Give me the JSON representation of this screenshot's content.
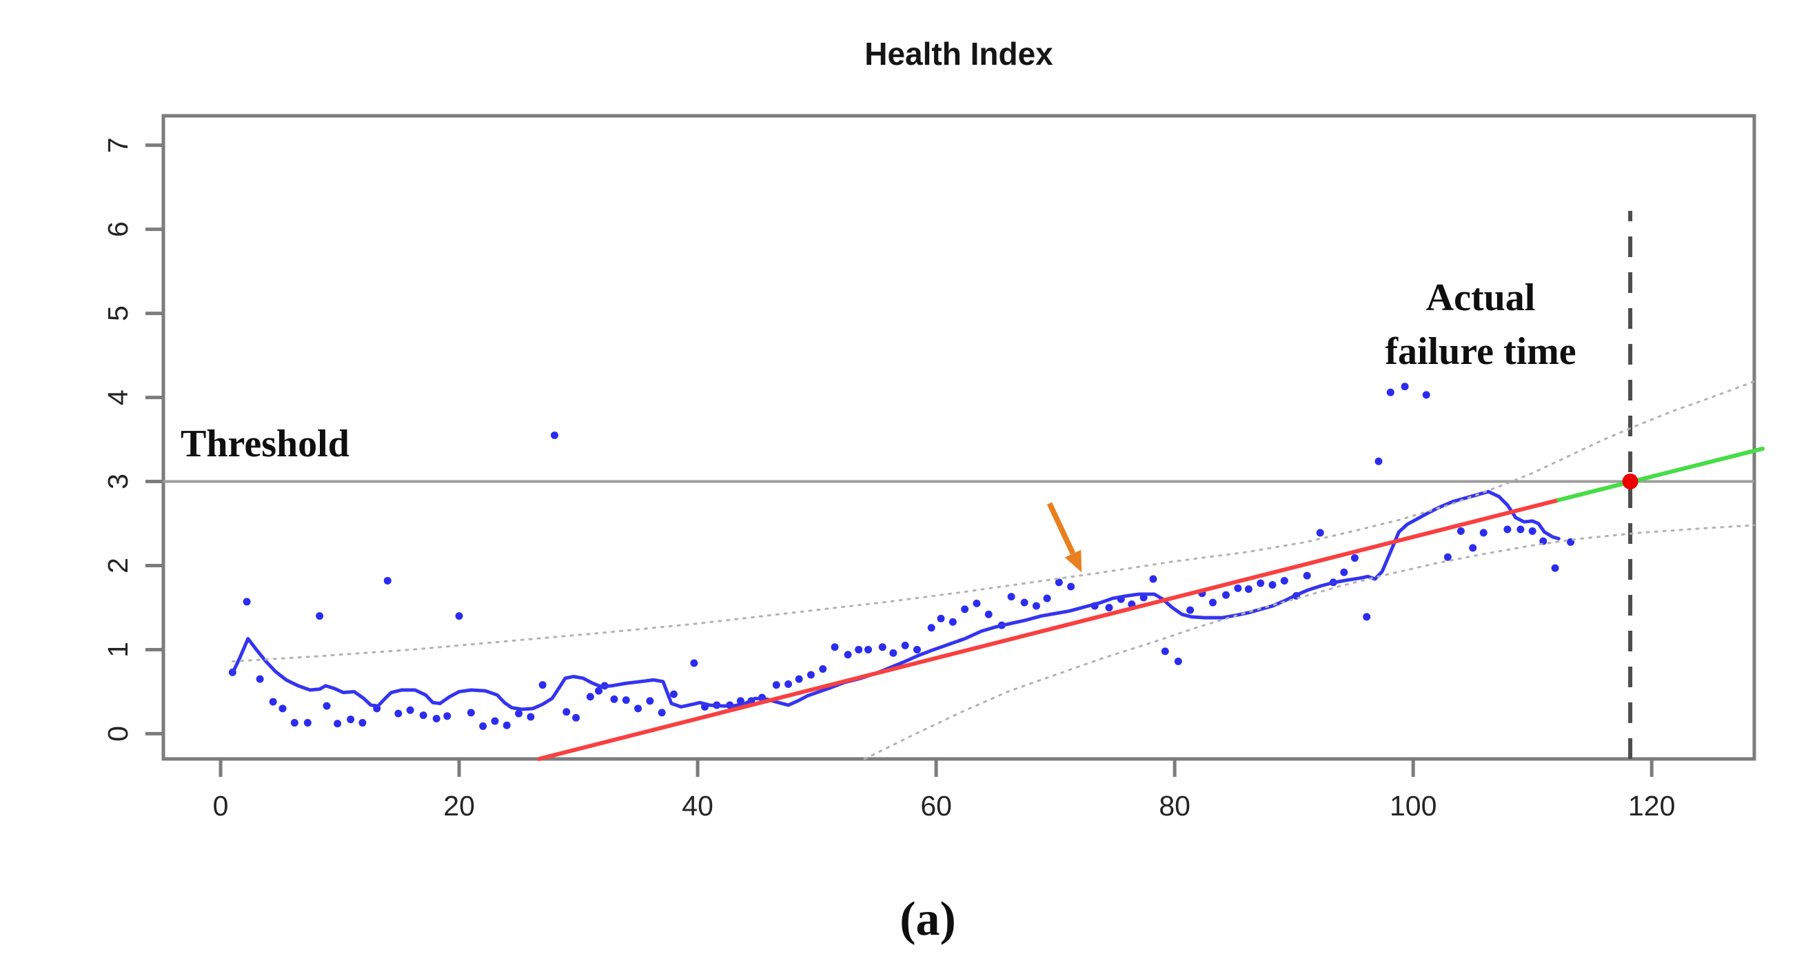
{
  "figure": {
    "title": "Health Index",
    "caption": "(a)"
  },
  "colors": {
    "observations": "#2c2cee",
    "smoothed_line": "#3434f0",
    "fitted_trend": "#f94040",
    "prediction_extension": "#46dd46",
    "predicted_failure_point": "#ee0000",
    "confidence_bounds": "#b2b2b2",
    "threshold_line": "#9e9e9e",
    "axis_box": "#7c7c7c",
    "dashed_failure_line": "#4d4d4d",
    "arrow": "#e8801f",
    "text": "#151515"
  },
  "chart_data": {
    "type": "scatter",
    "title": "Health Index",
    "caption": "(a)",
    "xlabel": "",
    "ylabel": "",
    "xlim": [
      -4.8,
      128.6
    ],
    "ylim": [
      -0.3,
      7.35
    ],
    "x_ticks": [
      0,
      20,
      40,
      60,
      80,
      100,
      120
    ],
    "y_ticks": [
      0,
      1,
      2,
      3,
      4,
      5,
      6,
      7
    ],
    "grid": false,
    "legend": "none",
    "annotations": {
      "threshold": {
        "label": "Threshold",
        "y": 3
      },
      "actual_failure": {
        "lines": [
          "Actual",
          "failure time"
        ],
        "x": 118.2,
        "line_top": 6.22
      },
      "arrow": {
        "from": [
          69.5,
          2.74
        ],
        "to": [
          72.2,
          1.92
        ]
      }
    },
    "series": [
      {
        "name": "health-index-observations",
        "kind": "scatter",
        "points": [
          [
            1,
            0.73
          ],
          [
            2.2,
            1.57
          ],
          [
            3.3,
            0.65
          ],
          [
            4.4,
            0.38
          ],
          [
            5.2,
            0.3
          ],
          [
            6.2,
            0.13
          ],
          [
            7.3,
            0.13
          ],
          [
            8.3,
            1.4
          ],
          [
            8.9,
            0.33
          ],
          [
            9.8,
            0.12
          ],
          [
            10.9,
            0.17
          ],
          [
            11.9,
            0.13
          ],
          [
            13.1,
            0.3
          ],
          [
            14,
            1.82
          ],
          [
            14.9,
            0.24
          ],
          [
            15.9,
            0.28
          ],
          [
            17,
            0.22
          ],
          [
            18.1,
            0.18
          ],
          [
            19,
            0.21
          ],
          [
            20,
            1.4
          ],
          [
            21,
            0.25
          ],
          [
            22,
            0.09
          ],
          [
            23,
            0.15
          ],
          [
            24,
            0.1
          ],
          [
            25,
            0.24
          ],
          [
            26,
            0.2
          ],
          [
            27,
            0.58
          ],
          [
            28,
            3.55
          ],
          [
            29,
            0.26
          ],
          [
            29.8,
            0.19
          ],
          [
            31,
            0.44
          ],
          [
            31.7,
            0.51
          ],
          [
            32.2,
            0.57
          ],
          [
            33,
            0.41
          ],
          [
            34,
            0.4
          ],
          [
            35,
            0.3
          ],
          [
            36,
            0.39
          ],
          [
            37,
            0.25
          ],
          [
            38,
            0.47
          ],
          [
            39.7,
            0.84
          ],
          [
            40.6,
            0.32
          ],
          [
            41.6,
            0.34
          ],
          [
            42.7,
            0.34
          ],
          [
            43.6,
            0.39
          ],
          [
            44.5,
            0.39
          ],
          [
            45.4,
            0.43
          ],
          [
            46.6,
            0.58
          ],
          [
            47.6,
            0.59
          ],
          [
            48.5,
            0.65
          ],
          [
            49.5,
            0.7
          ],
          [
            50.5,
            0.77
          ],
          [
            51.5,
            1.03
          ],
          [
            52.6,
            0.94
          ],
          [
            53.5,
            1.0
          ],
          [
            54.3,
            1.0
          ],
          [
            55.5,
            1.03
          ],
          [
            56.4,
            0.96
          ],
          [
            57.4,
            1.05
          ],
          [
            58.4,
            1.0
          ],
          [
            59.6,
            1.26
          ],
          [
            60.4,
            1.37
          ],
          [
            61.4,
            1.33
          ],
          [
            62.4,
            1.48
          ],
          [
            63.4,
            1.55
          ],
          [
            64.4,
            1.42
          ],
          [
            65.5,
            1.29
          ],
          [
            66.3,
            1.63
          ],
          [
            67.4,
            1.56
          ],
          [
            68.4,
            1.52
          ],
          [
            69.3,
            1.61
          ],
          [
            70.3,
            1.8
          ],
          [
            71.3,
            1.75
          ],
          [
            73.3,
            1.52
          ],
          [
            74.5,
            1.5
          ],
          [
            75.5,
            1.6
          ],
          [
            76.4,
            1.54
          ],
          [
            77.4,
            1.62
          ],
          [
            78.2,
            1.84
          ],
          [
            79.2,
            0.98
          ],
          [
            80.3,
            0.86
          ],
          [
            81.3,
            1.47
          ],
          [
            82.3,
            1.67
          ],
          [
            83.2,
            1.56
          ],
          [
            84.3,
            1.65
          ],
          [
            85.3,
            1.73
          ],
          [
            86.2,
            1.72
          ],
          [
            87.2,
            1.79
          ],
          [
            88.2,
            1.77
          ],
          [
            89.2,
            1.82
          ],
          [
            90.2,
            1.64
          ],
          [
            91.1,
            1.88
          ],
          [
            92.2,
            2.39
          ],
          [
            93.3,
            1.8
          ],
          [
            94.2,
            1.92
          ],
          [
            95.1,
            2.09
          ],
          [
            96.1,
            1.39
          ],
          [
            97.1,
            3.24
          ],
          [
            98.1,
            4.06
          ],
          [
            99.3,
            4.13
          ],
          [
            101.1,
            4.03
          ],
          [
            102.9,
            2.1
          ],
          [
            104,
            2.41
          ],
          [
            105,
            2.21
          ],
          [
            105.9,
            2.39
          ],
          [
            107.9,
            2.43
          ],
          [
            109,
            2.43
          ],
          [
            110,
            2.41
          ],
          [
            110.9,
            2.29
          ],
          [
            111.9,
            1.97
          ],
          [
            113.2,
            2.28
          ]
        ]
      },
      {
        "name": "smoothed-health-index",
        "kind": "line",
        "points": [
          [
            1,
            0.72
          ],
          [
            1.6,
            0.9
          ],
          [
            2.3,
            1.13
          ],
          [
            3,
            1.0
          ],
          [
            3.8,
            0.86
          ],
          [
            4.6,
            0.74
          ],
          [
            5.5,
            0.64
          ],
          [
            6.5,
            0.57
          ],
          [
            7.5,
            0.52
          ],
          [
            8.3,
            0.53
          ],
          [
            8.8,
            0.57
          ],
          [
            9.5,
            0.54
          ],
          [
            10.3,
            0.49
          ],
          [
            11.2,
            0.5
          ],
          [
            12,
            0.42
          ],
          [
            12.6,
            0.34
          ],
          [
            13.2,
            0.33
          ],
          [
            13.8,
            0.42
          ],
          [
            14.3,
            0.49
          ],
          [
            15.2,
            0.52
          ],
          [
            16.3,
            0.52
          ],
          [
            17.2,
            0.46
          ],
          [
            17.8,
            0.37
          ],
          [
            18.4,
            0.36
          ],
          [
            19.2,
            0.44
          ],
          [
            20,
            0.5
          ],
          [
            21,
            0.52
          ],
          [
            22.2,
            0.51
          ],
          [
            23.2,
            0.46
          ],
          [
            23.8,
            0.37
          ],
          [
            24.4,
            0.31
          ],
          [
            25.3,
            0.29
          ],
          [
            26.2,
            0.3
          ],
          [
            27,
            0.35
          ],
          [
            27.8,
            0.42
          ],
          [
            28.4,
            0.55
          ],
          [
            28.9,
            0.66
          ],
          [
            29.6,
            0.68
          ],
          [
            30.4,
            0.66
          ],
          [
            31.2,
            0.6
          ],
          [
            31.9,
            0.56
          ],
          [
            32.8,
            0.57
          ],
          [
            34,
            0.6
          ],
          [
            35.2,
            0.62
          ],
          [
            36.3,
            0.64
          ],
          [
            37.1,
            0.62
          ],
          [
            37.8,
            0.36
          ],
          [
            38.6,
            0.32
          ],
          [
            39.6,
            0.35
          ],
          [
            40.2,
            0.37
          ],
          [
            41,
            0.34
          ],
          [
            42,
            0.33
          ],
          [
            43,
            0.33
          ],
          [
            44,
            0.36
          ],
          [
            44.8,
            0.42
          ],
          [
            45.8,
            0.41
          ],
          [
            46.8,
            0.37
          ],
          [
            47.6,
            0.34
          ],
          [
            48.4,
            0.39
          ],
          [
            49.2,
            0.45
          ],
          [
            50.2,
            0.5
          ],
          [
            51.2,
            0.55
          ],
          [
            52.3,
            0.61
          ],
          [
            53.7,
            0.66
          ],
          [
            55,
            0.72
          ],
          [
            56.2,
            0.79
          ],
          [
            57.4,
            0.86
          ],
          [
            58.5,
            0.93
          ],
          [
            59.6,
            0.99
          ],
          [
            61,
            1.06
          ],
          [
            62.4,
            1.13
          ],
          [
            63.8,
            1.22
          ],
          [
            65,
            1.27
          ],
          [
            66.2,
            1.31
          ],
          [
            67.5,
            1.35
          ],
          [
            68.8,
            1.4
          ],
          [
            70,
            1.43
          ],
          [
            71.2,
            1.46
          ],
          [
            72.5,
            1.51
          ],
          [
            73.8,
            1.56
          ],
          [
            74.8,
            1.61
          ],
          [
            76,
            1.64
          ],
          [
            77,
            1.66
          ],
          [
            78.3,
            1.66
          ],
          [
            79,
            1.6
          ],
          [
            79.8,
            1.5
          ],
          [
            80.6,
            1.42
          ],
          [
            81.4,
            1.39
          ],
          [
            82.5,
            1.38
          ],
          [
            84,
            1.38
          ],
          [
            85.2,
            1.41
          ],
          [
            86.2,
            1.44
          ],
          [
            87.2,
            1.48
          ],
          [
            88.2,
            1.52
          ],
          [
            89.2,
            1.58
          ],
          [
            90.2,
            1.65
          ],
          [
            91.2,
            1.71
          ],
          [
            92.3,
            1.76
          ],
          [
            93.4,
            1.8
          ],
          [
            94.6,
            1.83
          ],
          [
            95.5,
            1.85
          ],
          [
            96.2,
            1.87
          ],
          [
            96.8,
            1.84
          ],
          [
            97.4,
            1.93
          ],
          [
            98,
            2.13
          ],
          [
            98.8,
            2.4
          ],
          [
            99.5,
            2.49
          ],
          [
            100.4,
            2.56
          ],
          [
            101.3,
            2.63
          ],
          [
            102.3,
            2.7
          ],
          [
            103.3,
            2.76
          ],
          [
            104.3,
            2.8
          ],
          [
            105.3,
            2.84
          ],
          [
            106.3,
            2.88
          ],
          [
            107.2,
            2.82
          ],
          [
            107.9,
            2.72
          ],
          [
            108.6,
            2.57
          ],
          [
            109.3,
            2.52
          ],
          [
            110,
            2.53
          ],
          [
            110.5,
            2.5
          ],
          [
            111,
            2.4
          ],
          [
            111.7,
            2.34
          ],
          [
            112.2,
            2.32
          ]
        ]
      },
      {
        "name": "fitted-degradation-trend",
        "kind": "line",
        "points": [
          [
            26.7,
            -0.3
          ],
          [
            112.2,
            2.78
          ]
        ]
      },
      {
        "name": "extrapolated-prediction",
        "kind": "line",
        "points": [
          [
            112.2,
            2.78
          ],
          [
            129.3,
            3.39
          ]
        ]
      },
      {
        "name": "upper-confidence-bound",
        "kind": "dotted",
        "points": [
          [
            1,
            0.86
          ],
          [
            8,
            0.92
          ],
          [
            16,
            1.0
          ],
          [
            24,
            1.1
          ],
          [
            32,
            1.2
          ],
          [
            40,
            1.31
          ],
          [
            48,
            1.44
          ],
          [
            56,
            1.57
          ],
          [
            62,
            1.68
          ],
          [
            68,
            1.8
          ],
          [
            74,
            1.92
          ],
          [
            80,
            2.05
          ],
          [
            86,
            2.16
          ],
          [
            91,
            2.28
          ],
          [
            95,
            2.41
          ],
          [
            99,
            2.55
          ],
          [
            103,
            2.72
          ],
          [
            107,
            2.93
          ],
          [
            110,
            3.1
          ],
          [
            113,
            3.3
          ],
          [
            116,
            3.5
          ],
          [
            119,
            3.68
          ],
          [
            122,
            3.85
          ],
          [
            125,
            4.0
          ],
          [
            128.6,
            4.19
          ]
        ]
      },
      {
        "name": "lower-confidence-bound",
        "kind": "dotted",
        "points": [
          [
            54,
            -0.3
          ],
          [
            58,
            -0.02
          ],
          [
            62,
            0.25
          ],
          [
            66,
            0.5
          ],
          [
            70,
            0.7
          ],
          [
            74,
            0.9
          ],
          [
            78,
            1.08
          ],
          [
            82,
            1.27
          ],
          [
            86,
            1.44
          ],
          [
            90,
            1.6
          ],
          [
            94,
            1.76
          ],
          [
            98,
            1.9
          ],
          [
            102,
            2.03
          ],
          [
            106,
            2.14
          ],
          [
            110,
            2.24
          ],
          [
            114,
            2.32
          ],
          [
            119,
            2.39
          ],
          [
            124,
            2.44
          ],
          [
            128.6,
            2.48
          ]
        ]
      },
      {
        "name": "predicted-failure-point",
        "kind": "point",
        "points": [
          [
            118.2,
            3.0
          ]
        ]
      }
    ]
  }
}
